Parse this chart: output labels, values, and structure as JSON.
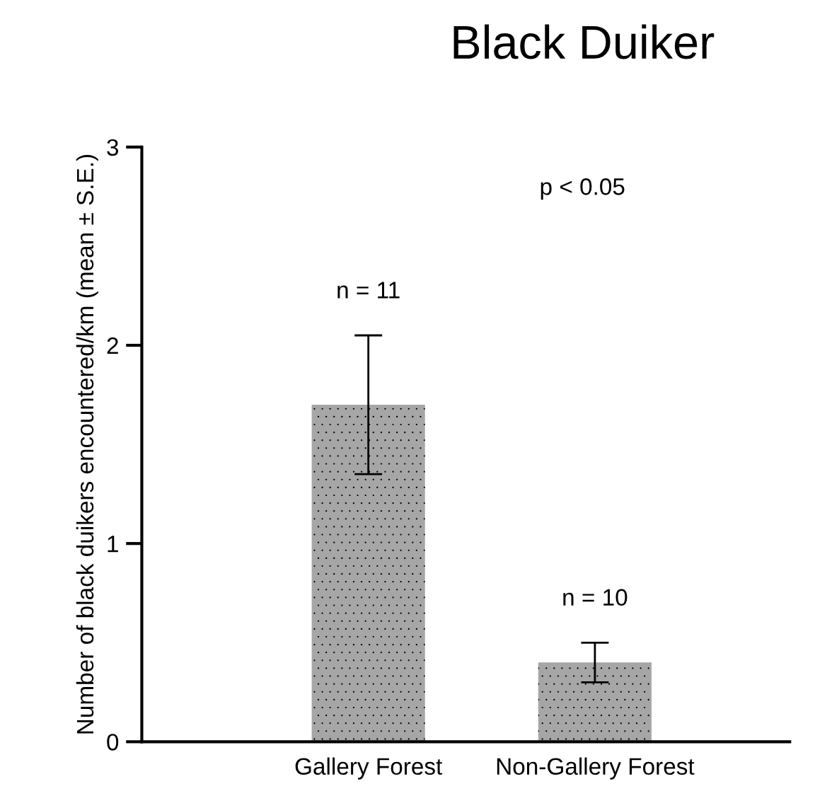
{
  "chart_data": {
    "type": "bar",
    "title": "Black Duiker",
    "ylabel": "Number of black duikers encountered/km (mean ± S.E.)",
    "categories": [
      "Gallery Forest",
      "Non-Gallery Forest"
    ],
    "values": [
      1.7,
      0.4
    ],
    "errors": [
      0.35,
      0.1
    ],
    "color": "#a6a6a6",
    "ylim": [
      0,
      3
    ],
    "yticks": [
      0,
      1,
      2,
      3
    ],
    "grid": false,
    "annotations": [
      "n = 11",
      "n = 10",
      "p < 0.05"
    ]
  }
}
